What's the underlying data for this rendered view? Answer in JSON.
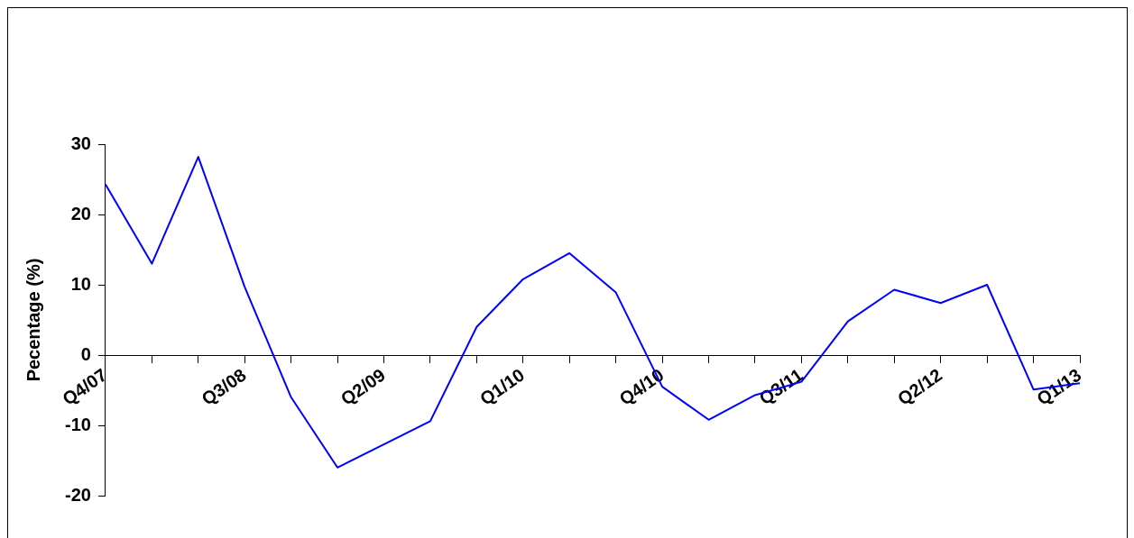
{
  "chart_data": {
    "type": "line",
    "ylabel": "Pecentage (%)",
    "categories": [
      "Q4/07",
      null,
      null,
      "Q3/08",
      null,
      null,
      "Q2/09",
      null,
      null,
      "Q1/10",
      null,
      null,
      "Q4/10",
      null,
      null,
      "Q3/11",
      null,
      null,
      "Q2/12",
      null,
      null,
      "Q1/13"
    ],
    "series": [
      {
        "color": "#0000ff",
        "values": [
          24.3,
          13,
          28.2,
          9.7,
          -6,
          -16,
          -12.7,
          -9.4,
          4,
          10.8,
          14.5,
          8.9,
          -4.5,
          -9.2,
          -5.7,
          -3.8,
          4.8,
          9.3,
          7.4,
          10,
          -4.9,
          -4
        ]
      }
    ],
    "ylim": [
      -20,
      30
    ],
    "yticks": [
      -20,
      -10,
      0,
      10,
      20,
      30
    ],
    "grid": false,
    "legend": false,
    "marker": "none",
    "line_style": "solid"
  }
}
